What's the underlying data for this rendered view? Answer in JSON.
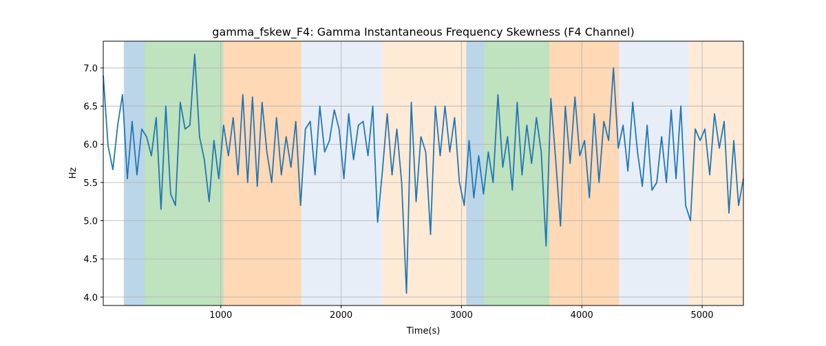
{
  "chart_data": {
    "type": "line",
    "title": "gamma_fskew_F4: Gamma Instantaneous Frequency Skewness (F4 Channel)",
    "xlabel": "Time(s)",
    "ylabel": "Hz",
    "x": [
      23,
      63,
      103,
      143,
      183,
      223,
      263,
      303,
      343,
      383,
      423,
      463,
      503,
      543,
      583,
      623,
      663,
      703,
      743,
      783,
      823,
      863,
      903,
      943,
      983,
      1023,
      1063,
      1103,
      1143,
      1183,
      1223,
      1263,
      1303,
      1343,
      1383,
      1423,
      1463,
      1503,
      1543,
      1583,
      1623,
      1663,
      1703,
      1743,
      1783,
      1823,
      1863,
      1903,
      1943,
      1983,
      2023,
      2063,
      2103,
      2143,
      2183,
      2223,
      2263,
      2303,
      2343,
      2383,
      2423,
      2463,
      2503,
      2543,
      2583,
      2623,
      2663,
      2703,
      2743,
      2783,
      2823,
      2863,
      2903,
      2943,
      2983,
      3023,
      3063,
      3103,
      3143,
      3183,
      3223,
      3263,
      3303,
      3343,
      3383,
      3423,
      3463,
      3503,
      3543,
      3583,
      3623,
      3663,
      3703,
      3743,
      3783,
      3823,
      3863,
      3903,
      3943,
      3983,
      4023,
      4063,
      4103,
      4143,
      4183,
      4223,
      4263,
      4303,
      4343,
      4383,
      4423,
      4463,
      4503,
      4543,
      4583,
      4623,
      4663,
      4703,
      4743,
      4783,
      4823,
      4863,
      4903,
      4943,
      4983,
      5023,
      5063,
      5103,
      5143,
      5183,
      5223,
      5263,
      5303,
      5343
    ],
    "values": [
      6.9,
      5.98,
      5.67,
      6.25,
      6.65,
      5.55,
      6.3,
      5.6,
      6.2,
      6.1,
      5.85,
      6.35,
      5.15,
      6.5,
      5.35,
      5.2,
      6.55,
      6.2,
      6.25,
      7.18,
      6.1,
      5.8,
      5.25,
      6.05,
      5.55,
      6.25,
      5.85,
      6.35,
      5.6,
      6.65,
      5.5,
      6.62,
      5.45,
      6.55,
      5.9,
      5.5,
      6.35,
      5.6,
      6.1,
      5.7,
      6.3,
      5.2,
      6.2,
      6.3,
      5.6,
      6.5,
      5.9,
      6.05,
      6.45,
      6.2,
      5.55,
      6.4,
      5.8,
      6.25,
      6.3,
      5.85,
      6.5,
      4.98,
      5.65,
      6.4,
      5.6,
      6.2,
      5.5,
      4.05,
      6.55,
      5.25,
      6.1,
      5.9,
      4.82,
      6.5,
      5.85,
      6.5,
      5.9,
      6.35,
      5.5,
      5.2,
      6.05,
      5.3,
      5.85,
      5.35,
      5.9,
      5.5,
      6.65,
      5.7,
      6.1,
      5.4,
      6.55,
      5.6,
      6.25,
      5.75,
      6.35,
      5.9,
      4.67,
      6.6,
      5.8,
      4.93,
      6.5,
      5.75,
      6.62,
      5.85,
      6.05,
      5.3,
      6.4,
      5.5,
      6.3,
      6.05,
      7.0,
      5.95,
      6.25,
      5.65,
      6.55,
      5.9,
      5.45,
      6.25,
      5.4,
      5.5,
      6.1,
      5.5,
      6.45,
      5.55,
      6.5,
      5.2,
      5.0,
      6.2,
      6.05,
      6.2,
      5.6,
      6.4,
      5.95,
      6.3,
      5.1,
      6.05,
      5.2,
      5.55
    ],
    "color": "#1f77b4",
    "regions": [
      {
        "start": 194,
        "end": 366,
        "color": "#1f77b4"
      },
      {
        "start": 366,
        "end": 1023,
        "color": "#2ca02c"
      },
      {
        "start": 1023,
        "end": 1669,
        "color": "#ff7f0e"
      },
      {
        "start": 1669,
        "end": 2343,
        "color": "#aec7e8"
      },
      {
        "start": 2343,
        "end": 3040,
        "color": "#ffbb78"
      },
      {
        "start": 3040,
        "end": 3189,
        "color": "#1f77b4"
      },
      {
        "start": 3189,
        "end": 3731,
        "color": "#2ca02c"
      },
      {
        "start": 3731,
        "end": 4309,
        "color": "#ff7f0e"
      },
      {
        "start": 4309,
        "end": 4891,
        "color": "#aec7e8"
      },
      {
        "start": 4891,
        "end": 5343,
        "color": "#ffbb78"
      }
    ],
    "xlim": [
      23,
      5343
    ],
    "ylim": [
      3.89,
      7.35
    ],
    "xticks": [
      1000,
      2000,
      3000,
      4000,
      5000
    ],
    "yticks": [
      {
        "value": 4,
        "label": "4.0"
      },
      4.5,
      {
        "value": 5,
        "label": "5.0"
      },
      5.5,
      {
        "value": 6,
        "label": "6.0"
      },
      6.5,
      {
        "value": 7,
        "label": "7.0"
      }
    ],
    "grid": true
  }
}
